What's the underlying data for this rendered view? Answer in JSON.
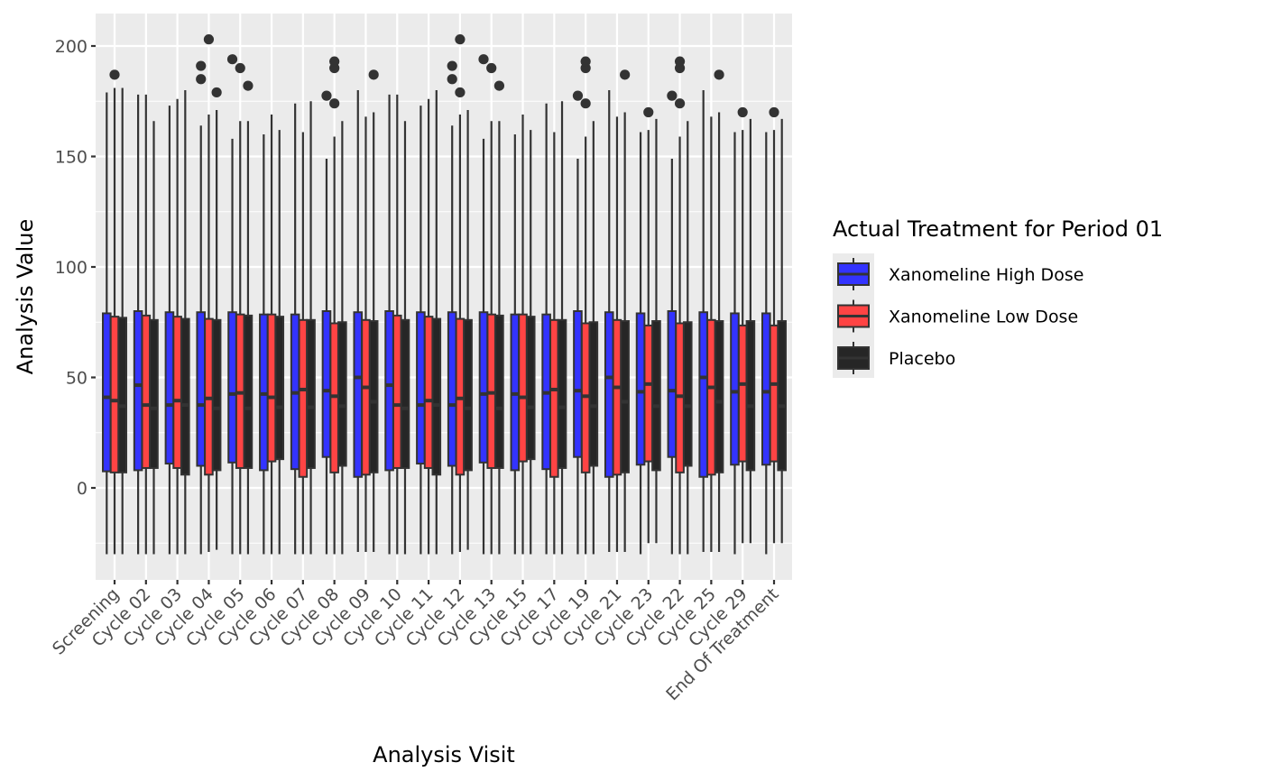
{
  "chart_data": {
    "type": "boxplot",
    "title": "",
    "xlabel": "Analysis Visit",
    "ylabel": "Analysis Value",
    "ylim": [
      -40,
      215
    ],
    "yticks": [
      0,
      50,
      100,
      150,
      200
    ],
    "grid": true,
    "legend": {
      "title": "Actual Treatment for Period 01",
      "placement": "right",
      "entries": [
        {
          "name": "Xanomeline High Dose",
          "color": "#3333FF"
        },
        {
          "name": "Xanomeline Low Dose",
          "color": "#FF4444"
        },
        {
          "name": "Placebo",
          "color": "#262626"
        }
      ]
    },
    "categories": [
      "Screening",
      "Cycle 02",
      "Cycle 03",
      "Cycle 04",
      "Cycle 05",
      "Cycle 06",
      "Cycle 07",
      "Cycle 08",
      "Cycle 09",
      "Cycle 10",
      "Cycle 11",
      "Cycle 12",
      "Cycle 13",
      "Cycle 15",
      "Cycle 17",
      "Cycle 19",
      "Cycle 21",
      "Cycle 23",
      "Cycle 22",
      "Cycle 25",
      "Cycle 29",
      "End Of Treatment"
    ],
    "series": [
      {
        "name": "Xanomeline High Dose",
        "color": "#3333FF",
        "boxes": [
          {
            "lower": -30,
            "q1": 7.5,
            "median": 41,
            "q3": 79,
            "upper": 179,
            "outliers": []
          },
          {
            "lower": -30,
            "q1": 8,
            "median": 46.5,
            "q3": 80,
            "upper": 178,
            "outliers": []
          },
          {
            "lower": -30,
            "q1": 11,
            "median": 37.5,
            "q3": 79.5,
            "upper": 173,
            "outliers": []
          },
          {
            "lower": -30,
            "q1": 10,
            "median": 37.5,
            "q3": 79.5,
            "upper": 164,
            "outliers": [
              185,
              191
            ]
          },
          {
            "lower": -30,
            "q1": 11.5,
            "median": 42.5,
            "q3": 79.5,
            "upper": 158,
            "outliers": [
              194
            ]
          },
          {
            "lower": -30,
            "q1": 8,
            "median": 42.5,
            "q3": 78.5,
            "upper": 160,
            "outliers": []
          },
          {
            "lower": -30,
            "q1": 8.5,
            "median": 43,
            "q3": 78.5,
            "upper": 174,
            "outliers": []
          },
          {
            "lower": -30,
            "q1": 14,
            "median": 44,
            "q3": 80,
            "upper": 149,
            "outliers": [
              177.5
            ]
          },
          {
            "lower": -29,
            "q1": 5,
            "median": 50,
            "q3": 79.5,
            "upper": 180,
            "outliers": []
          },
          {
            "lower": -30,
            "q1": 8,
            "median": 46.5,
            "q3": 80,
            "upper": 178,
            "outliers": []
          },
          {
            "lower": -30,
            "q1": 11,
            "median": 37.5,
            "q3": 79.5,
            "upper": 173,
            "outliers": []
          },
          {
            "lower": -30,
            "q1": 10,
            "median": 37.5,
            "q3": 79.5,
            "upper": 164,
            "outliers": [
              185,
              191
            ]
          },
          {
            "lower": -30,
            "q1": 11.5,
            "median": 42.5,
            "q3": 79.5,
            "upper": 158,
            "outliers": [
              194
            ]
          },
          {
            "lower": -30,
            "q1": 8,
            "median": 42.5,
            "q3": 78.5,
            "upper": 160,
            "outliers": []
          },
          {
            "lower": -30,
            "q1": 8.5,
            "median": 43,
            "q3": 78.5,
            "upper": 174,
            "outliers": []
          },
          {
            "lower": -30,
            "q1": 14,
            "median": 44,
            "q3": 80,
            "upper": 149,
            "outliers": [
              177.5
            ]
          },
          {
            "lower": -29,
            "q1": 5,
            "median": 50,
            "q3": 79.5,
            "upper": 180,
            "outliers": []
          },
          {
            "lower": -30,
            "q1": 10.5,
            "median": 43.5,
            "q3": 79,
            "upper": 161,
            "outliers": []
          },
          {
            "lower": -30,
            "q1": 14,
            "median": 44,
            "q3": 80,
            "upper": 149,
            "outliers": [
              177.5
            ]
          },
          {
            "lower": -29,
            "q1": 5,
            "median": 50,
            "q3": 79.5,
            "upper": 180,
            "outliers": []
          },
          {
            "lower": -30,
            "q1": 10.5,
            "median": 43.5,
            "q3": 79,
            "upper": 161,
            "outliers": []
          },
          {
            "lower": -30,
            "q1": 10.5,
            "median": 43.5,
            "q3": 79,
            "upper": 161,
            "outliers": []
          }
        ]
      },
      {
        "name": "Xanomeline Low Dose",
        "color": "#FF4444",
        "boxes": [
          {
            "lower": -30,
            "q1": 7,
            "median": 39.5,
            "q3": 77.5,
            "upper": 181,
            "outliers": [
              187
            ]
          },
          {
            "lower": -30,
            "q1": 9,
            "median": 37.5,
            "q3": 78,
            "upper": 178,
            "outliers": []
          },
          {
            "lower": -30,
            "q1": 9,
            "median": 39.5,
            "q3": 77.5,
            "upper": 176,
            "outliers": []
          },
          {
            "lower": -29,
            "q1": 6,
            "median": 40.5,
            "q3": 76.5,
            "upper": 169,
            "outliers": [
              203
            ]
          },
          {
            "lower": -30,
            "q1": 9,
            "median": 43,
            "q3": 78.5,
            "upper": 166,
            "outliers": [
              190
            ]
          },
          {
            "lower": -30,
            "q1": 12,
            "median": 41,
            "q3": 78.5,
            "upper": 169,
            "outliers": []
          },
          {
            "lower": -30,
            "q1": 5,
            "median": 44.5,
            "q3": 76,
            "upper": 161,
            "outliers": []
          },
          {
            "lower": -30,
            "q1": 7,
            "median": 41.5,
            "q3": 74.5,
            "upper": 159,
            "outliers": [
              174,
              190,
              193
            ]
          },
          {
            "lower": -29,
            "q1": 6,
            "median": 45.5,
            "q3": 76,
            "upper": 168,
            "outliers": []
          },
          {
            "lower": -30,
            "q1": 9,
            "median": 37.5,
            "q3": 78,
            "upper": 178,
            "outliers": []
          },
          {
            "lower": -30,
            "q1": 9,
            "median": 39.5,
            "q3": 77.5,
            "upper": 176,
            "outliers": []
          },
          {
            "lower": -29,
            "q1": 6,
            "median": 40.5,
            "q3": 76.5,
            "upper": 169,
            "outliers": [
              179,
              203
            ]
          },
          {
            "lower": -30,
            "q1": 9,
            "median": 43,
            "q3": 78.5,
            "upper": 166,
            "outliers": [
              190
            ]
          },
          {
            "lower": -30,
            "q1": 12,
            "median": 41,
            "q3": 78.5,
            "upper": 169,
            "outliers": []
          },
          {
            "lower": -30,
            "q1": 5,
            "median": 44.5,
            "q3": 76,
            "upper": 161,
            "outliers": []
          },
          {
            "lower": -30,
            "q1": 7,
            "median": 41.5,
            "q3": 74.5,
            "upper": 159,
            "outliers": [
              174,
              190,
              193
            ]
          },
          {
            "lower": -29,
            "q1": 6,
            "median": 45.5,
            "q3": 76,
            "upper": 168,
            "outliers": []
          },
          {
            "lower": -25,
            "q1": 12,
            "median": 47,
            "q3": 73.5,
            "upper": 162,
            "outliers": [
              170
            ]
          },
          {
            "lower": -30,
            "q1": 7,
            "median": 41.5,
            "q3": 74.5,
            "upper": 159,
            "outliers": [
              174,
              190,
              193
            ]
          },
          {
            "lower": -29,
            "q1": 6,
            "median": 45.5,
            "q3": 76,
            "upper": 168,
            "outliers": []
          },
          {
            "lower": -25,
            "q1": 12,
            "median": 47,
            "q3": 73.5,
            "upper": 162,
            "outliers": [
              170
            ]
          },
          {
            "lower": -25,
            "q1": 12,
            "median": 47,
            "q3": 73.5,
            "upper": 162,
            "outliers": [
              170
            ]
          }
        ]
      },
      {
        "name": "Placebo",
        "color": "#262626",
        "boxes": [
          {
            "lower": -30,
            "q1": 7,
            "median": 37,
            "q3": 77,
            "upper": 181,
            "outliers": []
          },
          {
            "lower": -30,
            "q1": 9,
            "median": 36,
            "q3": 76,
            "upper": 166,
            "outliers": []
          },
          {
            "lower": -30,
            "q1": 6,
            "median": 37.5,
            "q3": 76.5,
            "upper": 180,
            "outliers": []
          },
          {
            "lower": -28,
            "q1": 8,
            "median": 36,
            "q3": 76,
            "upper": 171,
            "outliers": [
              179
            ]
          },
          {
            "lower": -30,
            "q1": 9,
            "median": 36,
            "q3": 78,
            "upper": 166,
            "outliers": [
              182
            ]
          },
          {
            "lower": -30,
            "q1": 13,
            "median": 36.5,
            "q3": 77.5,
            "upper": 162,
            "outliers": []
          },
          {
            "lower": -30,
            "q1": 9,
            "median": 36.5,
            "q3": 76,
            "upper": 175,
            "outliers": []
          },
          {
            "lower": -30,
            "q1": 10,
            "median": 37,
            "q3": 75,
            "upper": 166,
            "outliers": []
          },
          {
            "lower": -29,
            "q1": 7,
            "median": 39,
            "q3": 75.5,
            "upper": 170,
            "outliers": [
              187
            ]
          },
          {
            "lower": -30,
            "q1": 9,
            "median": 36,
            "q3": 76,
            "upper": 166,
            "outliers": []
          },
          {
            "lower": -30,
            "q1": 6,
            "median": 37.5,
            "q3": 76.5,
            "upper": 180,
            "outliers": []
          },
          {
            "lower": -28,
            "q1": 8,
            "median": 36,
            "q3": 76,
            "upper": 171,
            "outliers": []
          },
          {
            "lower": -30,
            "q1": 9,
            "median": 36,
            "q3": 78,
            "upper": 166,
            "outliers": [
              182
            ]
          },
          {
            "lower": -30,
            "q1": 13,
            "median": 36.5,
            "q3": 77.5,
            "upper": 162,
            "outliers": []
          },
          {
            "lower": -30,
            "q1": 9,
            "median": 36.5,
            "q3": 76,
            "upper": 175,
            "outliers": []
          },
          {
            "lower": -30,
            "q1": 10,
            "median": 37,
            "q3": 75,
            "upper": 166,
            "outliers": []
          },
          {
            "lower": -29,
            "q1": 7,
            "median": 39,
            "q3": 75.5,
            "upper": 170,
            "outliers": [
              187
            ]
          },
          {
            "lower": -25,
            "q1": 8,
            "median": 37,
            "q3": 75.5,
            "upper": 167,
            "outliers": []
          },
          {
            "lower": -30,
            "q1": 10,
            "median": 37,
            "q3": 75,
            "upper": 166,
            "outliers": []
          },
          {
            "lower": -29,
            "q1": 7,
            "median": 39,
            "q3": 75.5,
            "upper": 170,
            "outliers": [
              187
            ]
          },
          {
            "lower": -25,
            "q1": 8,
            "median": 37,
            "q3": 75.5,
            "upper": 167,
            "outliers": []
          },
          {
            "lower": -25,
            "q1": 8,
            "median": 37,
            "q3": 75.5,
            "upper": 167,
            "outliers": []
          }
        ]
      }
    ]
  }
}
